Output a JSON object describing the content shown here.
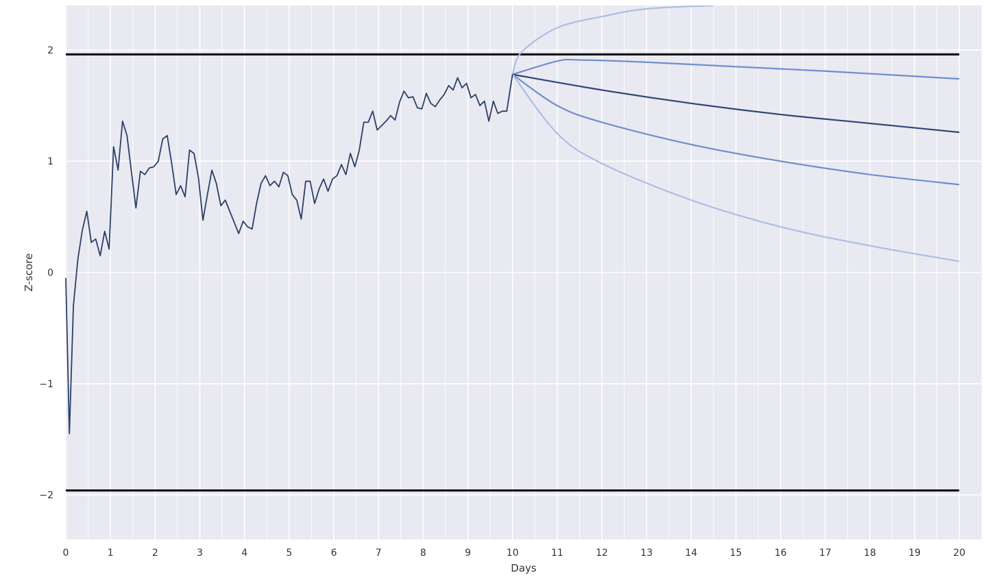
{
  "chart_data": {
    "type": "line",
    "title": "",
    "xlabel": "Days",
    "ylabel": "Z-score",
    "xlim": [
      0,
      20.5
    ],
    "ylim": [
      -2.4,
      2.4
    ],
    "x_ticks": [
      0,
      1,
      2,
      3,
      4,
      5,
      6,
      7,
      8,
      9,
      10,
      11,
      12,
      13,
      14,
      15,
      16,
      17,
      18,
      19,
      20
    ],
    "x_tick_labels": [
      "0",
      "1",
      "2",
      "3",
      "4",
      "5",
      "6",
      "7",
      "8",
      "9",
      "10",
      "11",
      "12",
      "13",
      "14",
      "15",
      "16",
      "17",
      "18",
      "19",
      "20"
    ],
    "y_ticks": [
      -2,
      -1,
      0,
      1,
      2
    ],
    "y_tick_labels": [
      "−2",
      "−1",
      "0",
      "1",
      "2"
    ],
    "x_minor_gridlines": true,
    "grid": true,
    "background_color": "#e9e9f1",
    "threshold_lines": [
      {
        "y": 1.96,
        "x_range": [
          0,
          20
        ],
        "color": "#000000"
      },
      {
        "y": -1.96,
        "x_range": [
          0,
          20
        ],
        "color": "#000000"
      }
    ],
    "observed": {
      "color": "#2a3f66",
      "x": [
        0,
        0.08,
        0.17,
        0.27,
        0.37,
        0.47,
        0.57,
        0.67,
        0.77,
        0.87,
        0.97,
        1.07,
        1.17,
        1.27,
        1.37,
        1.47,
        1.57,
        1.67,
        1.77,
        1.87,
        1.97,
        2.07,
        2.17,
        2.27,
        2.37,
        2.47,
        2.57,
        2.67,
        2.77,
        2.87,
        2.97,
        3.07,
        3.17,
        3.27,
        3.37,
        3.47,
        3.57,
        3.67,
        3.77,
        3.87,
        3.97,
        4.07,
        4.17,
        4.27,
        4.37,
        4.47,
        4.57,
        4.67,
        4.77,
        4.87,
        4.97,
        5.07,
        5.17,
        5.27,
        5.37,
        5.47,
        5.57,
        5.67,
        5.77,
        5.87,
        5.97,
        6.07,
        6.17,
        6.27,
        6.37,
        6.47,
        6.57,
        6.67,
        6.77,
        6.87,
        6.97,
        7.07,
        7.17,
        7.27,
        7.37,
        7.47,
        7.57,
        7.67,
        7.77,
        7.87,
        7.97,
        8.07,
        8.17,
        8.27,
        8.37,
        8.47,
        8.57,
        8.67,
        8.77,
        8.87,
        8.97,
        9.07,
        9.17,
        9.27,
        9.37,
        9.47,
        9.57,
        9.67,
        9.77,
        9.87,
        10.0
      ],
      "y": [
        -0.05,
        -1.45,
        -0.3,
        0.12,
        0.38,
        0.55,
        0.27,
        0.3,
        0.15,
        0.37,
        0.21,
        1.13,
        0.92,
        1.36,
        1.23,
        0.9,
        0.58,
        0.91,
        0.88,
        0.94,
        0.95,
        1.0,
        1.2,
        1.23,
        0.98,
        0.7,
        0.78,
        0.68,
        1.1,
        1.07,
        0.85,
        0.47,
        0.7,
        0.92,
        0.8,
        0.6,
        0.65,
        0.55,
        0.45,
        0.35,
        0.46,
        0.41,
        0.39,
        0.62,
        0.8,
        0.87,
        0.78,
        0.82,
        0.77,
        0.9,
        0.87,
        0.7,
        0.65,
        0.48,
        0.82,
        0.82,
        0.62,
        0.75,
        0.84,
        0.73,
        0.84,
        0.87,
        0.97,
        0.88,
        1.07,
        0.95,
        1.1,
        1.35,
        1.35,
        1.45,
        1.28,
        1.32,
        1.36,
        1.41,
        1.37,
        1.53,
        1.63,
        1.57,
        1.58,
        1.48,
        1.47,
        1.61,
        1.52,
        1.49,
        1.55,
        1.6,
        1.68,
        1.64,
        1.75,
        1.66,
        1.7,
        1.57,
        1.6,
        1.5,
        1.54,
        1.36,
        1.54,
        1.43,
        1.45,
        1.45,
        1.78
      ]
    },
    "forecast": {
      "x_start": 10,
      "x_end": 20,
      "start_value": 1.78,
      "series": [
        {
          "role": "outer-upper",
          "color": "#adbde6",
          "values": {
            "10": 1.78,
            "10.2": 1.98,
            "11": 2.2,
            "12": 2.3,
            "13": 2.37,
            "14.5": 2.4
          }
        },
        {
          "role": "inner-upper",
          "color": "#6f8ecc",
          "values": {
            "10": 1.78,
            "11": 1.9,
            "11.5": 1.91,
            "13": 1.89,
            "15": 1.85,
            "17": 1.81,
            "20": 1.74
          }
        },
        {
          "role": "center",
          "color": "#2f4676",
          "values": {
            "10": 1.78,
            "12": 1.64,
            "14": 1.52,
            "16": 1.42,
            "18": 1.34,
            "20": 1.26
          }
        },
        {
          "role": "inner-lower",
          "color": "#6f8ecc",
          "values": {
            "10": 1.78,
            "11": 1.5,
            "12": 1.35,
            "14": 1.15,
            "16": 1.0,
            "18": 0.88,
            "20": 0.79
          }
        },
        {
          "role": "outer-lower",
          "color": "#adbde6",
          "values": {
            "10": 1.78,
            "11": 1.25,
            "12": 0.98,
            "14": 0.65,
            "16": 0.41,
            "18": 0.24,
            "20": 0.1
          }
        }
      ]
    }
  }
}
